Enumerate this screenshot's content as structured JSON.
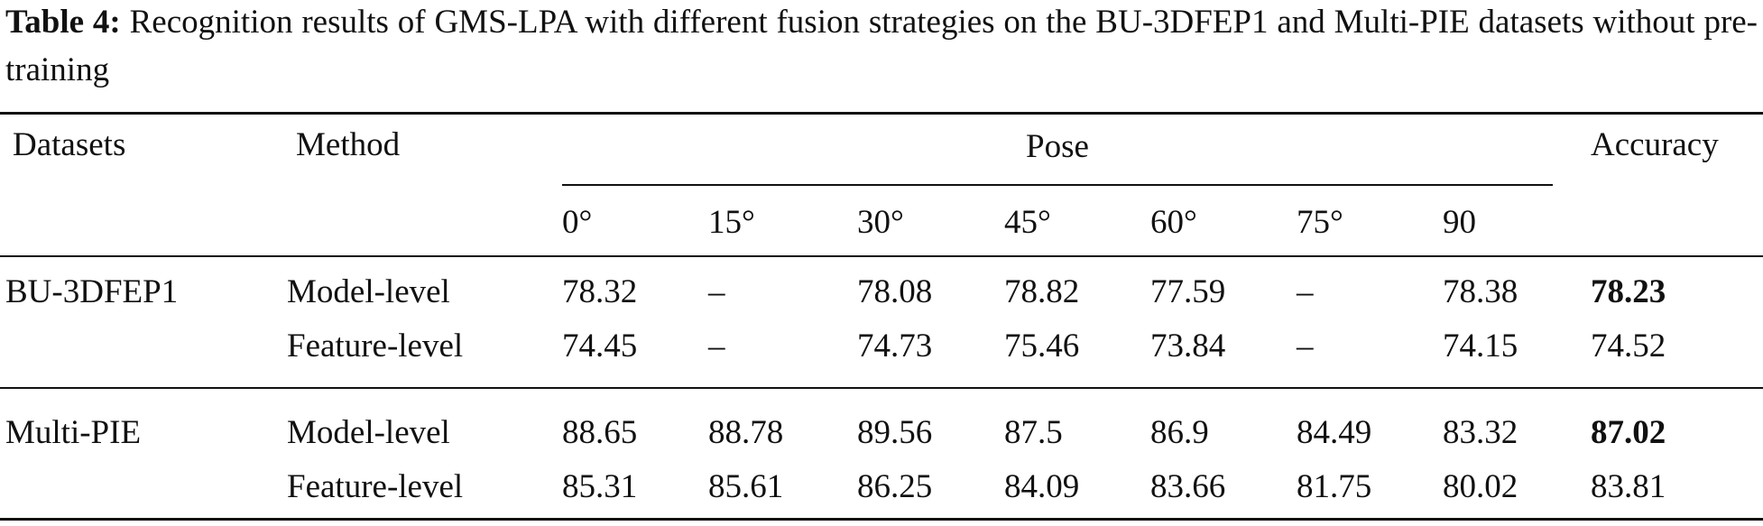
{
  "caption": {
    "label": "Table 4:",
    "text": "Recognition results of GMS-LPA with different fusion strategies on the BU-3DFEP1 and Multi-PIE datasets without pre-training"
  },
  "table": {
    "header": {
      "dataset": "Datasets",
      "method": "Method",
      "pose": "Pose",
      "accuracy": "Accuracy"
    },
    "pose_columns": [
      "0°",
      "15°",
      "30°",
      "45°",
      "60°",
      "75°",
      "90"
    ],
    "groups": [
      {
        "dataset": "BU-3DFEP1",
        "rows": [
          {
            "method": "Model-level",
            "values": [
              "78.32",
              "–",
              "78.08",
              "78.82",
              "77.59",
              "–",
              "78.38"
            ],
            "accuracy": "78.23"
          },
          {
            "method": "Feature-level",
            "values": [
              "74.45",
              "–",
              "74.73",
              "75.46",
              "73.84",
              "–",
              "74.15"
            ],
            "accuracy": "74.52"
          }
        ]
      },
      {
        "dataset": "Multi-PIE",
        "rows": [
          {
            "method": "Model-level",
            "values": [
              "88.65",
              "88.78",
              "89.56",
              "87.5",
              "86.9",
              "84.49",
              "83.32"
            ],
            "accuracy": "87.02"
          },
          {
            "method": "Feature-level",
            "values": [
              "85.31",
              "85.61",
              "86.25",
              "84.09",
              "83.66",
              "81.75",
              "80.02"
            ],
            "accuracy": "83.81"
          }
        ]
      }
    ]
  }
}
